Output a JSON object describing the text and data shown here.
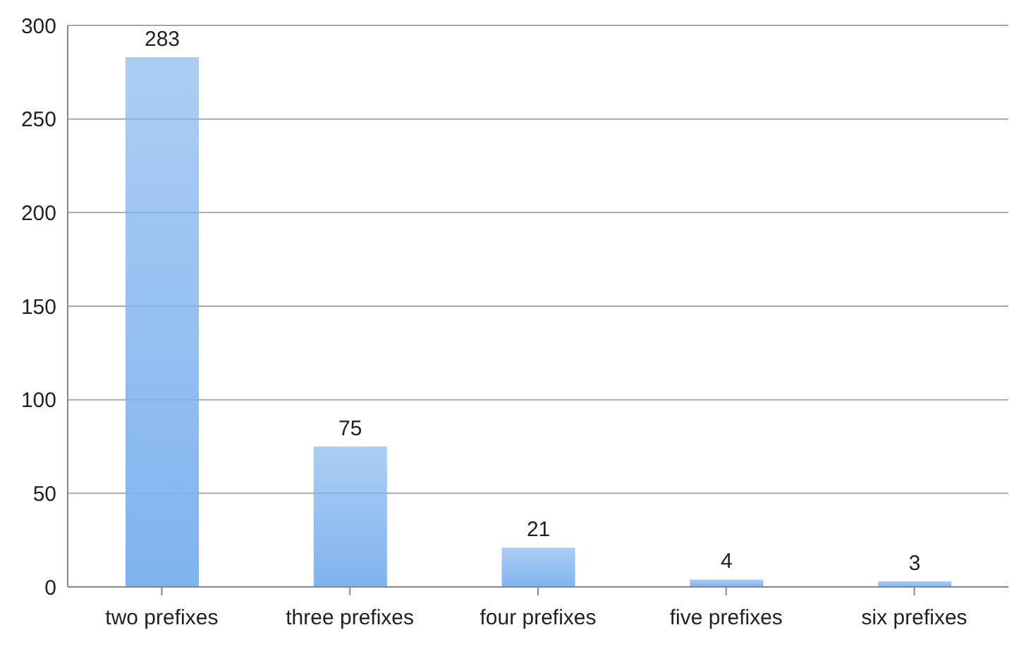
{
  "chart_data": {
    "type": "bar",
    "categories": [
      "two prefixes",
      "three prefixes",
      "four prefixes",
      "five prefixes",
      "six prefixes"
    ],
    "values": [
      283,
      75,
      21,
      4,
      3
    ],
    "color": "#7fb3ee",
    "data_labels": true,
    "ylim": [
      0,
      300
    ],
    "yticks": [
      0,
      50,
      100,
      150,
      200,
      250,
      300
    ],
    "grid": "y"
  }
}
